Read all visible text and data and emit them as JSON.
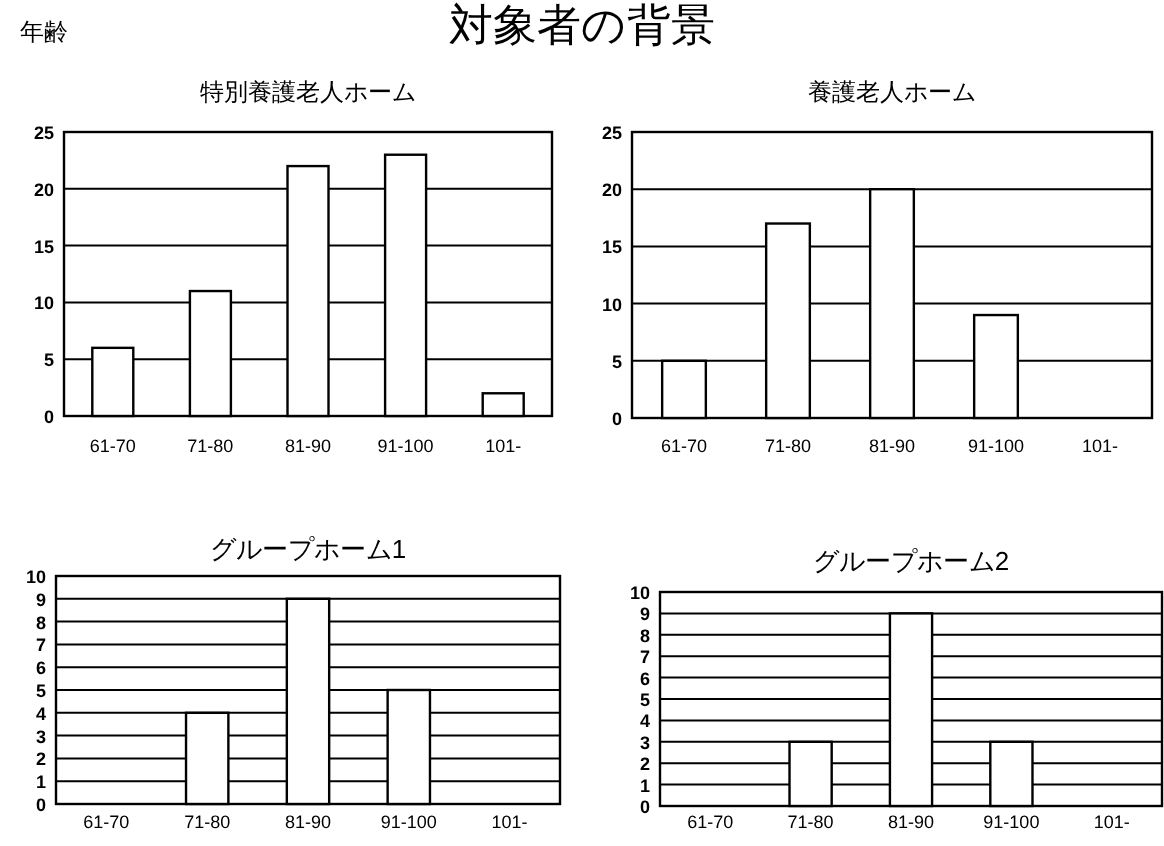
{
  "chart_data": [
    {
      "type": "bar",
      "title": "特別養護老人ホーム",
      "annotations": [
        "対象者の背景",
        "年齢"
      ],
      "categories": [
        "61-70",
        "71-80",
        "81-90",
        "91-100",
        "101-"
      ],
      "values": [
        6,
        11,
        22,
        23,
        2
      ],
      "color": "#ffffff",
      "ylim": [
        0,
        25
      ],
      "yticks": [
        0,
        5,
        10,
        15,
        20,
        25
      ],
      "grid": "y"
    },
    {
      "type": "bar",
      "title": "養護老人ホーム",
      "categories": [
        "61-70",
        "71-80",
        "81-90",
        "91-100",
        "101-"
      ],
      "values": [
        5,
        17,
        20,
        9,
        0
      ],
      "color": "#ffffff",
      "ylim": [
        0,
        25
      ],
      "yticks": [
        0,
        5,
        10,
        15,
        20,
        25
      ],
      "grid": "y"
    },
    {
      "type": "bar",
      "title": "グループホーム1",
      "categories": [
        "61-70",
        "71-80",
        "81-90",
        "91-100",
        "101-"
      ],
      "values": [
        0,
        4,
        9,
        5,
        0
      ],
      "color": "#ffffff",
      "ylim": [
        0,
        10
      ],
      "yticks": [
        0,
        1,
        2,
        3,
        4,
        5,
        6,
        7,
        8,
        9,
        10
      ],
      "grid": "y"
    },
    {
      "type": "bar",
      "title": "グループホーム2",
      "categories": [
        "61-70",
        "71-80",
        "81-90",
        "91-100",
        "101-"
      ],
      "values": [
        0,
        3,
        9,
        3,
        0
      ],
      "color": "#ffffff",
      "ylim": [
        0,
        10
      ],
      "yticks": [
        0,
        1,
        2,
        3,
        4,
        5,
        6,
        7,
        8,
        9,
        10
      ],
      "grid": "y"
    }
  ]
}
